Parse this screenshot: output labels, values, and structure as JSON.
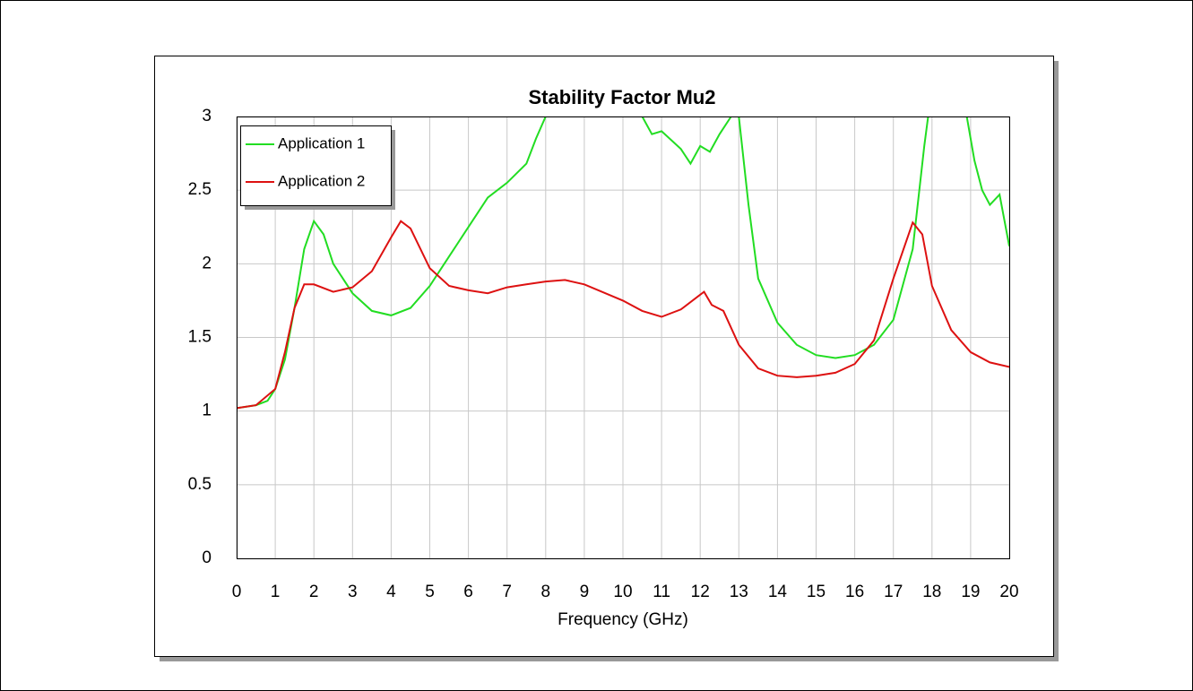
{
  "chart_data": {
    "type": "line",
    "title": "Stability Factor Mu2",
    "x_label": "Frequency (GHz)",
    "xlim": [
      0,
      20
    ],
    "xticks": [
      0,
      1,
      2,
      3,
      4,
      5,
      6,
      7,
      8,
      9,
      10,
      11,
      12,
      13,
      14,
      15,
      16,
      17,
      18,
      19,
      20
    ],
    "ylim": [
      0,
      3
    ],
    "yticks": [
      0,
      0.5,
      1,
      1.5,
      2,
      2.5,
      3
    ],
    "grid": true,
    "legend": "upper left",
    "series": [
      {
        "name": "Application 1",
        "color": "#22dd22",
        "x": [
          0,
          0.5,
          0.8,
          1,
          1.25,
          1.5,
          1.75,
          2,
          2.25,
          2.5,
          3,
          3.5,
          4,
          4.5,
          5,
          5.5,
          6,
          6.5,
          7,
          7.5,
          7.75,
          8,
          9,
          10.5,
          10.75,
          11,
          11.5,
          11.75,
          12,
          12.25,
          12.5,
          12.8,
          12.9,
          13,
          13.25,
          13.5,
          14,
          14.5,
          15,
          15.5,
          16,
          16.5,
          17,
          17.5,
          17.8,
          17.9,
          18.5,
          18.9,
          19.1,
          19.3,
          19.5,
          19.75,
          20
        ],
        "values": [
          1.02,
          1.04,
          1.07,
          1.15,
          1.35,
          1.7,
          2.1,
          2.29,
          2.2,
          2.0,
          1.8,
          1.68,
          1.65,
          1.7,
          1.85,
          2.05,
          2.25,
          2.45,
          2.55,
          2.68,
          2.85,
          3.0,
          null,
          3.0,
          2.88,
          2.9,
          2.78,
          2.68,
          2.8,
          2.76,
          2.88,
          3.0,
          null,
          3.0,
          2.4,
          1.9,
          1.6,
          1.45,
          1.38,
          1.36,
          1.38,
          1.45,
          1.62,
          2.1,
          2.8,
          3.0,
          null,
          3.0,
          2.7,
          2.5,
          2.4,
          2.47,
          2.12
        ]
      },
      {
        "name": "Application 2",
        "color": "#dd1111",
        "x": [
          0,
          0.5,
          1,
          1.25,
          1.5,
          1.75,
          2,
          2.5,
          3,
          3.5,
          4,
          4.25,
          4.5,
          5,
          5.5,
          6,
          6.5,
          7,
          7.5,
          8,
          8.5,
          9,
          10,
          10.5,
          11,
          11.5,
          12,
          12.1,
          12.3,
          12.6,
          13,
          13.5,
          14,
          14.5,
          15,
          15.5,
          16,
          16.5,
          17,
          17.5,
          17.75,
          18,
          18.5,
          19,
          19.5,
          20
        ],
        "values": [
          1.02,
          1.04,
          1.15,
          1.4,
          1.7,
          1.86,
          1.86,
          1.81,
          1.84,
          1.95,
          2.18,
          2.29,
          2.24,
          1.97,
          1.85,
          1.82,
          1.8,
          1.84,
          1.86,
          1.88,
          1.89,
          1.86,
          1.75,
          1.68,
          1.64,
          1.69,
          1.79,
          1.81,
          1.72,
          1.68,
          1.45,
          1.29,
          1.24,
          1.23,
          1.24,
          1.26,
          1.32,
          1.48,
          1.9,
          2.28,
          2.2,
          1.85,
          1.55,
          1.4,
          1.33,
          1.3
        ]
      }
    ]
  }
}
